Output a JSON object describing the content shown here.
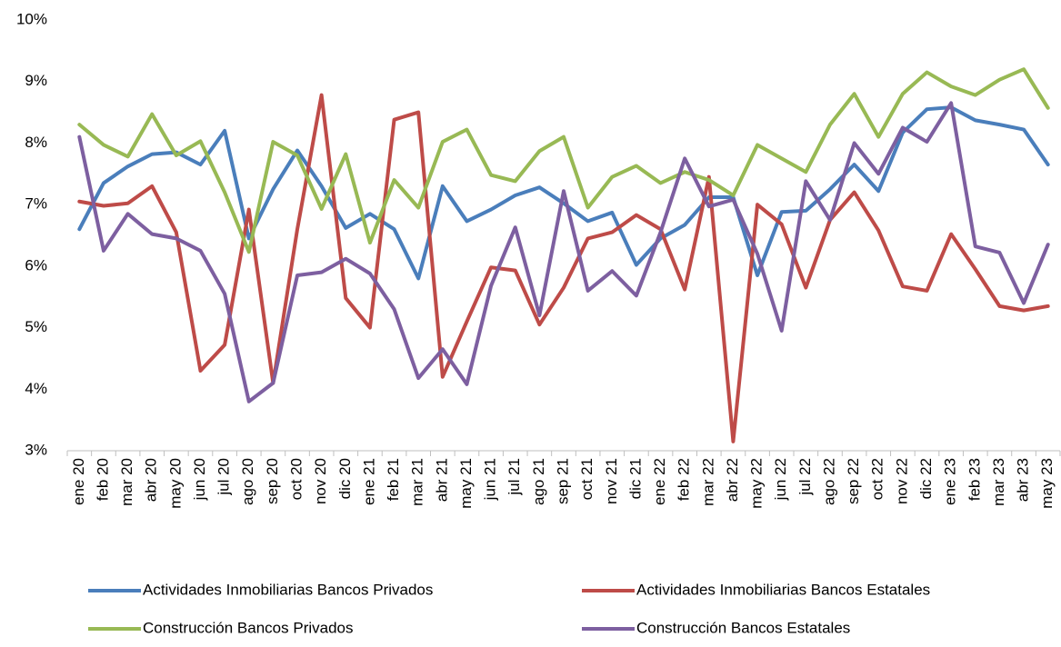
{
  "chart_data": {
    "type": "line",
    "categories": [
      "ene 20",
      "feb 20",
      "mar 20",
      "abr 20",
      "may 20",
      "jun 20",
      "jul 20",
      "ago 20",
      "sep 20",
      "oct 20",
      "nov 20",
      "dic 20",
      "ene 21",
      "feb 21",
      "mar 21",
      "abr 21",
      "may 21",
      "jun 21",
      "jul 21",
      "ago 21",
      "sep 21",
      "oct 21",
      "nov 21",
      "dic 21",
      "ene 22",
      "feb 22",
      "mar 22",
      "abr 22",
      "may 22",
      "jun 22",
      "jul 22",
      "ago 22",
      "sep 22",
      "oct 22",
      "nov 22",
      "dic 22",
      "ene 23",
      "feb 23",
      "mar 23",
      "abr 23",
      "may 23"
    ],
    "series": [
      {
        "name": "Actividades Inmobiliarias Bancos Privados",
        "color": "#4a7ebb",
        "values": [
          6.6,
          7.35,
          7.62,
          7.82,
          7.85,
          7.65,
          8.2,
          6.45,
          7.25,
          7.88,
          7.3,
          6.62,
          6.85,
          6.6,
          5.8,
          7.3,
          6.73,
          6.92,
          7.15,
          7.28,
          7.02,
          6.73,
          6.87,
          6.02,
          6.45,
          6.67,
          7.12,
          7.12,
          5.85,
          6.88,
          6.9,
          7.25,
          7.65,
          7.22,
          8.17,
          8.55,
          8.58,
          8.37,
          8.3,
          8.22,
          7.65
        ]
      },
      {
        "name": "Actividades Inmobiliarias Bancos Estatales",
        "color": "#be4b48",
        "values": [
          7.05,
          6.98,
          7.02,
          7.3,
          6.55,
          4.3,
          4.72,
          6.92,
          4.1,
          6.6,
          8.78,
          5.48,
          5.0,
          8.38,
          8.5,
          4.2,
          5.1,
          5.98,
          5.93,
          5.05,
          5.65,
          6.45,
          6.55,
          6.83,
          6.6,
          5.62,
          7.45,
          3.15,
          7.0,
          6.68,
          5.65,
          6.75,
          7.2,
          6.58,
          5.67,
          5.6,
          6.52,
          5.95,
          5.35,
          5.28,
          5.35
        ]
      },
      {
        "name": "Construcción Bancos Privados",
        "color": "#98b954",
        "values": [
          8.3,
          7.97,
          7.78,
          8.47,
          7.8,
          8.03,
          7.2,
          6.23,
          8.02,
          7.8,
          6.93,
          7.82,
          6.38,
          7.4,
          6.95,
          8.02,
          8.22,
          7.48,
          7.38,
          7.87,
          8.1,
          6.95,
          7.45,
          7.63,
          7.35,
          7.53,
          7.4,
          7.15,
          7.97,
          7.75,
          7.53,
          8.3,
          8.8,
          8.1,
          8.8,
          9.15,
          8.92,
          8.78,
          9.03,
          9.2,
          8.57
        ]
      },
      {
        "name": "Construcción Bancos Estatales",
        "color": "#7d5fa0",
        "values": [
          8.1,
          6.25,
          6.85,
          6.52,
          6.45,
          6.25,
          5.55,
          3.8,
          4.1,
          5.85,
          5.9,
          6.12,
          5.88,
          5.3,
          4.18,
          4.65,
          4.08,
          5.68,
          6.63,
          5.2,
          7.22,
          5.6,
          5.92,
          5.52,
          6.55,
          7.75,
          6.97,
          7.08,
          6.2,
          4.95,
          7.38,
          6.75,
          8.0,
          7.5,
          8.25,
          8.02,
          8.65,
          6.32,
          6.22,
          5.4,
          6.35
        ]
      }
    ],
    "ylim": [
      3,
      10
    ],
    "yticks": [
      {
        "value": 3,
        "label": "3%"
      },
      {
        "value": 4,
        "label": "4%"
      },
      {
        "value": 5,
        "label": "5%"
      },
      {
        "value": 6,
        "label": "6%"
      },
      {
        "value": 7,
        "label": "7%"
      },
      {
        "value": 8,
        "label": "8%"
      },
      {
        "value": 9,
        "label": "9%"
      },
      {
        "value": 10,
        "label": "10%"
      }
    ],
    "grid": true
  }
}
